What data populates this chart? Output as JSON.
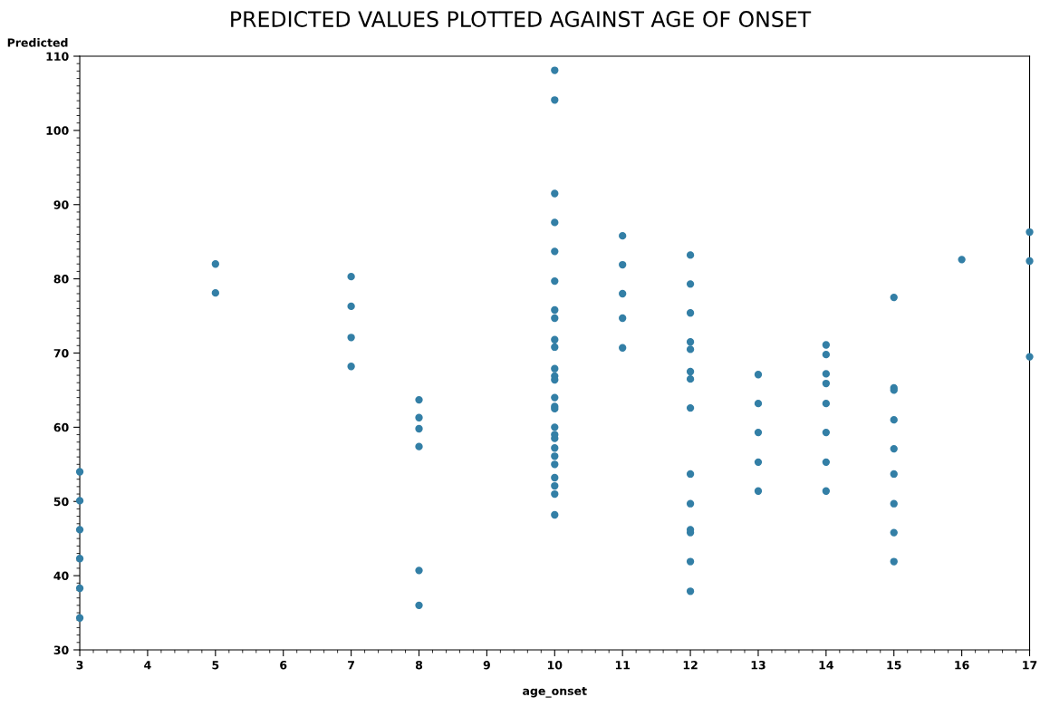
{
  "chart_data": {
    "type": "scatter",
    "title": "PREDICTED VALUES PLOTTED AGAINST AGE OF ONSET",
    "xlabel": "age_onset",
    "ylabel": "Predicted",
    "series": [
      {
        "color": "#337fa6",
        "x": [
          3,
          3,
          3,
          3,
          3,
          3,
          5,
          5,
          7,
          7,
          7,
          7,
          8,
          8,
          8,
          8,
          8,
          8,
          10,
          10,
          10,
          10,
          10,
          10,
          10,
          10,
          10,
          10,
          10,
          10,
          10,
          10,
          10,
          10,
          10,
          10,
          10,
          10,
          10,
          10,
          10,
          10,
          10,
          10,
          11,
          11,
          11,
          11,
          11,
          12,
          12,
          12,
          12,
          12,
          12,
          12,
          12,
          12,
          12,
          12,
          12,
          12,
          12,
          13,
          13,
          13,
          13,
          13,
          14,
          14,
          14,
          14,
          14,
          14,
          14,
          14,
          15,
          15,
          15,
          15,
          15,
          15,
          15,
          15,
          15,
          16,
          17,
          17,
          17
        ],
        "values": [
          54.0,
          50.1,
          46.2,
          42.3,
          38.3,
          34.3,
          82.0,
          78.1,
          80.3,
          76.3,
          72.1,
          68.2,
          63.7,
          61.3,
          59.8,
          57.4,
          40.7,
          36.0,
          108.1,
          104.1,
          91.5,
          87.6,
          83.7,
          79.7,
          75.8,
          74.7,
          71.8,
          70.8,
          67.9,
          66.9,
          66.4,
          64.0,
          62.8,
          62.5,
          60.0,
          59.0,
          58.5,
          57.2,
          56.1,
          55.0,
          53.2,
          52.1,
          51.0,
          48.2,
          85.8,
          81.9,
          78.0,
          74.7,
          70.7,
          83.2,
          79.3,
          75.4,
          71.5,
          70.5,
          67.5,
          66.5,
          62.6,
          53.7,
          49.7,
          46.2,
          45.8,
          41.9,
          37.9,
          67.1,
          63.2,
          59.3,
          55.3,
          51.4,
          71.1,
          69.8,
          67.2,
          65.9,
          63.2,
          59.3,
          55.3,
          51.4,
          77.5,
          65.3,
          65.0,
          61.0,
          57.1,
          53.7,
          49.7,
          45.8,
          41.9,
          82.6,
          86.3,
          82.4,
          69.5
        ]
      }
    ],
    "xlim": [
      3,
      17
    ],
    "xticks": [
      3,
      4,
      5,
      6,
      7,
      8,
      9,
      10,
      11,
      12,
      13,
      14,
      15,
      16,
      17
    ],
    "ylim": [
      30,
      110
    ],
    "yticks": [
      30,
      40,
      50,
      60,
      70,
      80,
      90,
      100,
      110
    ],
    "marker": "circle"
  }
}
